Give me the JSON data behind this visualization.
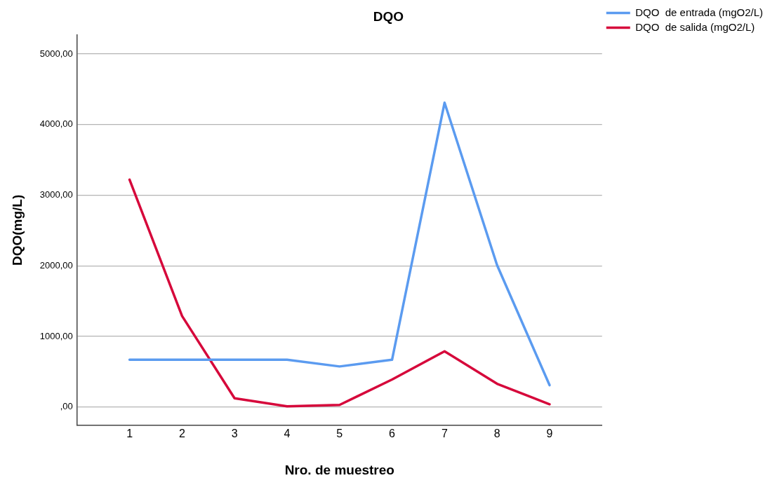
{
  "chart_data": {
    "type": "line",
    "title": "DQO",
    "xlabel": "Nro. de muestreo",
    "ylabel": "DQO(mg/L)",
    "categories": [
      "1",
      "2",
      "3",
      "4",
      "5",
      "6",
      "7",
      "8",
      "9"
    ],
    "series": [
      {
        "name": "DQO  de entrada (mgO2/L)",
        "color": "#5b9bf0",
        "values": [
          670,
          670,
          670,
          670,
          575,
          670,
          4310,
          2010,
          310
        ]
      },
      {
        "name": "DQO  de salida (mgO2/L)",
        "color": "#d6083b",
        "values": [
          3220,
          1290,
          125,
          10,
          30,
          390,
          790,
          330,
          40
        ]
      }
    ],
    "ylim": [
      -260,
      5270
    ],
    "yticks": [
      {
        "value": 0,
        "label": ",00"
      },
      {
        "value": 1000,
        "label": "1000,00"
      },
      {
        "value": 2000,
        "label": "2000,00"
      },
      {
        "value": 3000,
        "label": "3000,00"
      },
      {
        "value": 4000,
        "label": "4000,00"
      },
      {
        "value": 5000,
        "label": "5000,00"
      }
    ],
    "grid": "y",
    "legend": "top right",
    "marker": "none",
    "line_style": "solid"
  }
}
